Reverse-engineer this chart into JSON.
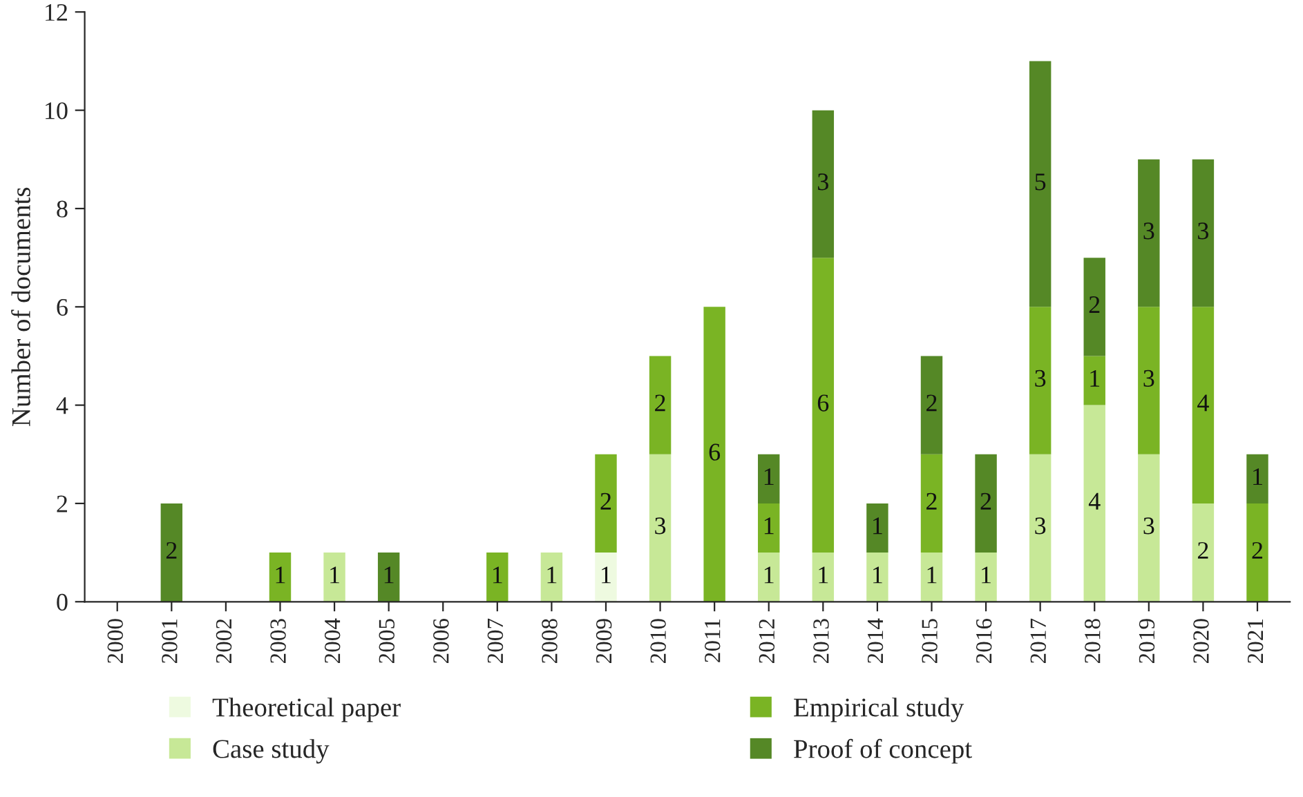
{
  "chart_data": {
    "type": "bar",
    "stacked": true,
    "ylabel": "Number of documents",
    "categories": [
      "2000",
      "2001",
      "2002",
      "2003",
      "2004",
      "2005",
      "2006",
      "2007",
      "2008",
      "2009",
      "2010",
      "2011",
      "2012",
      "2013",
      "2014",
      "2015",
      "2016",
      "2017",
      "2018",
      "2019",
      "2020",
      "2021"
    ],
    "series": [
      {
        "name": "Theoretical paper",
        "color": "#eefae0",
        "values": [
          null,
          null,
          null,
          null,
          null,
          null,
          null,
          null,
          null,
          1,
          null,
          null,
          null,
          null,
          null,
          null,
          null,
          null,
          null,
          null,
          null,
          null
        ]
      },
      {
        "name": "Case study",
        "color": "#c7e897",
        "values": [
          null,
          null,
          null,
          null,
          1,
          null,
          null,
          null,
          1,
          null,
          3,
          null,
          1,
          1,
          1,
          1,
          1,
          3,
          4,
          3,
          2,
          null
        ]
      },
      {
        "name": "Empirical study",
        "color": "#7ab424",
        "values": [
          null,
          null,
          null,
          1,
          null,
          null,
          null,
          1,
          null,
          2,
          2,
          6,
          1,
          6,
          null,
          2,
          null,
          3,
          1,
          3,
          4,
          2
        ]
      },
      {
        "name": "Proof of concept",
        "color": "#558826",
        "values": [
          null,
          2,
          null,
          null,
          null,
          1,
          null,
          null,
          null,
          null,
          null,
          null,
          1,
          3,
          1,
          2,
          2,
          5,
          2,
          3,
          3,
          1
        ]
      }
    ],
    "ylim": [
      0,
      12
    ],
    "yticks": [
      0,
      2,
      4,
      6,
      8,
      10,
      12
    ],
    "data_labels": true,
    "legend": "bottom",
    "grid": false
  }
}
